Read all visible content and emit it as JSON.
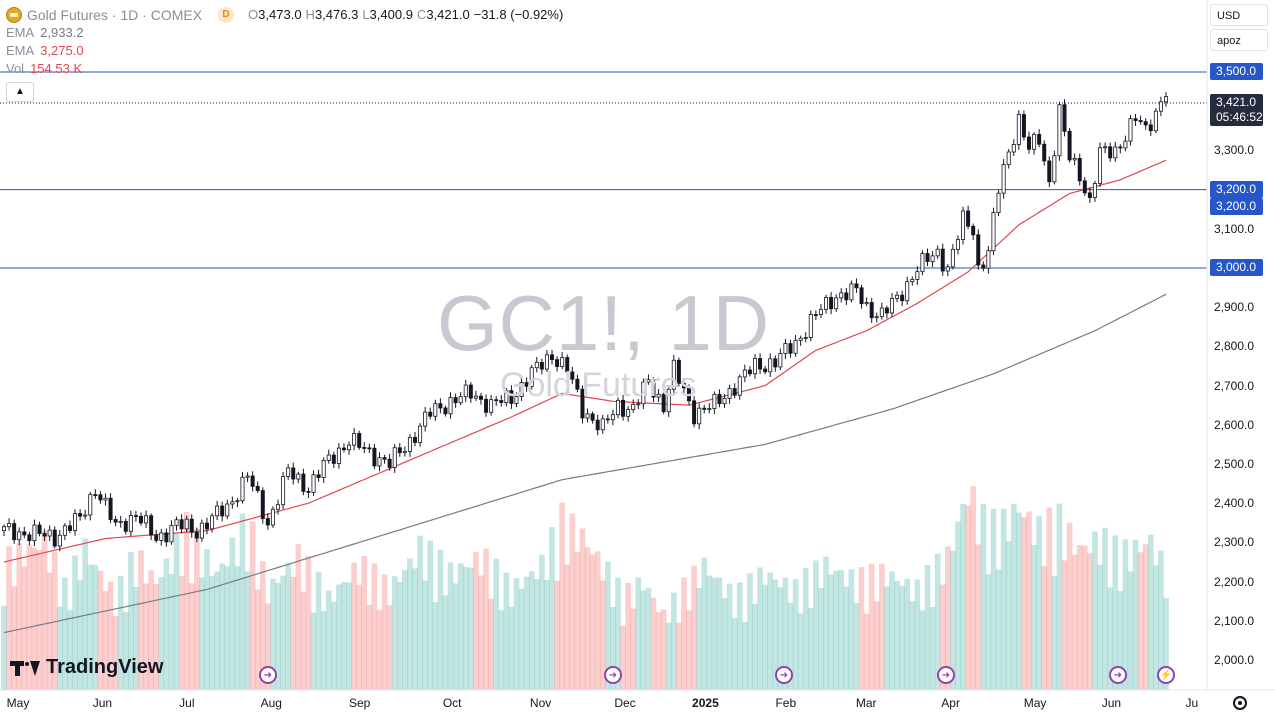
{
  "header": {
    "title": "Gold Futures · 1D · COMEX",
    "interval_badge": "D",
    "ohlc": [
      {
        "key": "O",
        "value": "3,473.0"
      },
      {
        "key": "H",
        "value": "3,476.3"
      },
      {
        "key": "L",
        "value": "3,400.9"
      },
      {
        "key": "C",
        "value": "3,421.0"
      }
    ],
    "change": "−31.8 (−0.92%)"
  },
  "indicators": {
    "ema1_name": "EMA",
    "ema1_value": "2,933.2",
    "ema2_name": "EMA",
    "ema2_value": "3,275.0",
    "vol_name": "Vol",
    "vol_value": "154.53 K"
  },
  "controls": {
    "currency": "USD",
    "scale_mode": "apoz"
  },
  "watermark": {
    "symbol": "GC1!, 1D",
    "name": "Gold Futures"
  },
  "price_labels": {
    "level_3500": "3,500.0",
    "last_price": "3,421.0",
    "countdown": "05:46:52",
    "level_3200a": "3,200.0",
    "level_3200b": "3,200.0",
    "level_3000": "3,000.0"
  },
  "brand": {
    "name": "TradingView"
  },
  "colors": {
    "up": "#26a69a",
    "down": "#ef5350",
    "candle": "#131722",
    "ema_fast": "#e0484f",
    "ema_slow": "#787b86",
    "hline": "#2656c8",
    "accent": "#2962ff"
  },
  "chart_data": {
    "type": "candlestick",
    "title": "Gold Futures · 1D · COMEX",
    "ylim": [
      1960,
      3560
    ],
    "y_ticks": [
      "3,300.0",
      "3,100.0",
      "2,900.0",
      "2,800.0",
      "2,700.0",
      "2,600.0",
      "2,500.0",
      "2,400.0",
      "2,300.0",
      "2,200.0",
      "2,100.0",
      "2,000.0"
    ],
    "y_tick_values": [
      3300,
      3100,
      2900,
      2800,
      2700,
      2600,
      2500,
      2400,
      2300,
      2200,
      2100,
      2000
    ],
    "x_labels": [
      "May",
      "Jun",
      "Jul",
      "Aug",
      "Sep",
      "Oct",
      "Nov",
      "Dec",
      "2025",
      "Feb",
      "Mar",
      "Apr",
      "May",
      "Jun",
      "Ju"
    ],
    "horizontal_levels": [
      3500,
      3200,
      3000
    ],
    "last_price": 3421.0,
    "close_anchors": [
      [
        0,
        2330
      ],
      [
        10,
        2315
      ],
      [
        15,
        2360
      ],
      [
        18,
        2440
      ],
      [
        22,
        2340
      ],
      [
        26,
        2370
      ],
      [
        30,
        2310
      ],
      [
        34,
        2345
      ],
      [
        38,
        2330
      ],
      [
        44,
        2390
      ],
      [
        48,
        2470
      ],
      [
        52,
        2350
      ],
      [
        56,
        2480
      ],
      [
        60,
        2440
      ],
      [
        64,
        2510
      ],
      [
        68,
        2560
      ],
      [
        72,
        2530
      ],
      [
        76,
        2500
      ],
      [
        80,
        2560
      ],
      [
        84,
        2630
      ],
      [
        88,
        2660
      ],
      [
        92,
        2680
      ],
      [
        96,
        2650
      ],
      [
        100,
        2670
      ],
      [
        104,
        2730
      ],
      [
        108,
        2780
      ],
      [
        111,
        2740
      ],
      [
        114,
        2640
      ],
      [
        118,
        2590
      ],
      [
        121,
        2650
      ],
      [
        124,
        2640
      ],
      [
        127,
        2710
      ],
      [
        130,
        2650
      ],
      [
        132,
        2740
      ],
      [
        136,
        2630
      ],
      [
        140,
        2650
      ],
      [
        144,
        2700
      ],
      [
        148,
        2750
      ],
      [
        152,
        2760
      ],
      [
        156,
        2810
      ],
      [
        160,
        2880
      ],
      [
        164,
        2930
      ],
      [
        168,
        2940
      ],
      [
        170,
        2900
      ],
      [
        173,
        2880
      ],
      [
        176,
        2920
      ],
      [
        180,
        3000
      ],
      [
        184,
        3040
      ],
      [
        186,
        3000
      ],
      [
        189,
        3120
      ],
      [
        191,
        3100
      ],
      [
        192,
        3000
      ],
      [
        194,
        3040
      ],
      [
        196,
        3200
      ],
      [
        198,
        3300
      ],
      [
        200,
        3380
      ],
      [
        202,
        3300
      ],
      [
        204,
        3330
      ],
      [
        206,
        3220
      ],
      [
        208,
        3400
      ],
      [
        210,
        3280
      ],
      [
        212,
        3240
      ],
      [
        214,
        3170
      ],
      [
        216,
        3290
      ],
      [
        219,
        3300
      ],
      [
        221,
        3340
      ],
      [
        223,
        3380
      ],
      [
        225,
        3350
      ],
      [
        227,
        3400
      ],
      [
        229,
        3450
      ]
    ],
    "ema_fast_anchors": [
      [
        0,
        2250
      ],
      [
        20,
        2310
      ],
      [
        40,
        2330
      ],
      [
        60,
        2400
      ],
      [
        80,
        2510
      ],
      [
        100,
        2620
      ],
      [
        110,
        2680
      ],
      [
        120,
        2660
      ],
      [
        135,
        2650
      ],
      [
        150,
        2700
      ],
      [
        160,
        2790
      ],
      [
        170,
        2840
      ],
      [
        180,
        2910
      ],
      [
        190,
        2990
      ],
      [
        200,
        3110
      ],
      [
        210,
        3190
      ],
      [
        220,
        3225
      ],
      [
        229,
        3275
      ]
    ],
    "ema_slow_anchors": [
      [
        0,
        2070
      ],
      [
        40,
        2180
      ],
      [
        80,
        2340
      ],
      [
        110,
        2460
      ],
      [
        150,
        2550
      ],
      [
        175,
        2640
      ],
      [
        195,
        2730
      ],
      [
        215,
        2840
      ],
      [
        229,
        2933
      ]
    ],
    "volume_anchors": [
      [
        0,
        150
      ],
      [
        8,
        180
      ],
      [
        12,
        120
      ],
      [
        16,
        170
      ],
      [
        22,
        110
      ],
      [
        26,
        160
      ],
      [
        30,
        130
      ],
      [
        36,
        190
      ],
      [
        42,
        140
      ],
      [
        48,
        200
      ],
      [
        52,
        120
      ],
      [
        58,
        160
      ],
      [
        64,
        110
      ],
      [
        70,
        150
      ],
      [
        76,
        120
      ],
      [
        82,
        170
      ],
      [
        88,
        140
      ],
      [
        94,
        160
      ],
      [
        100,
        120
      ],
      [
        106,
        150
      ],
      [
        110,
        200
      ],
      [
        114,
        185
      ],
      [
        118,
        150
      ],
      [
        122,
        110
      ],
      [
        126,
        130
      ],
      [
        130,
        90
      ],
      [
        134,
        120
      ],
      [
        138,
        150
      ],
      [
        144,
        110
      ],
      [
        150,
        140
      ],
      [
        156,
        120
      ],
      [
        162,
        150
      ],
      [
        168,
        130
      ],
      [
        174,
        140
      ],
      [
        180,
        120
      ],
      [
        186,
        160
      ],
      [
        190,
        240
      ],
      [
        193,
        200
      ],
      [
        196,
        190
      ],
      [
        200,
        220
      ],
      [
        204,
        190
      ],
      [
        208,
        200
      ],
      [
        212,
        170
      ],
      [
        216,
        180
      ],
      [
        220,
        160
      ],
      [
        226,
        180
      ],
      [
        229,
        140
      ]
    ]
  }
}
